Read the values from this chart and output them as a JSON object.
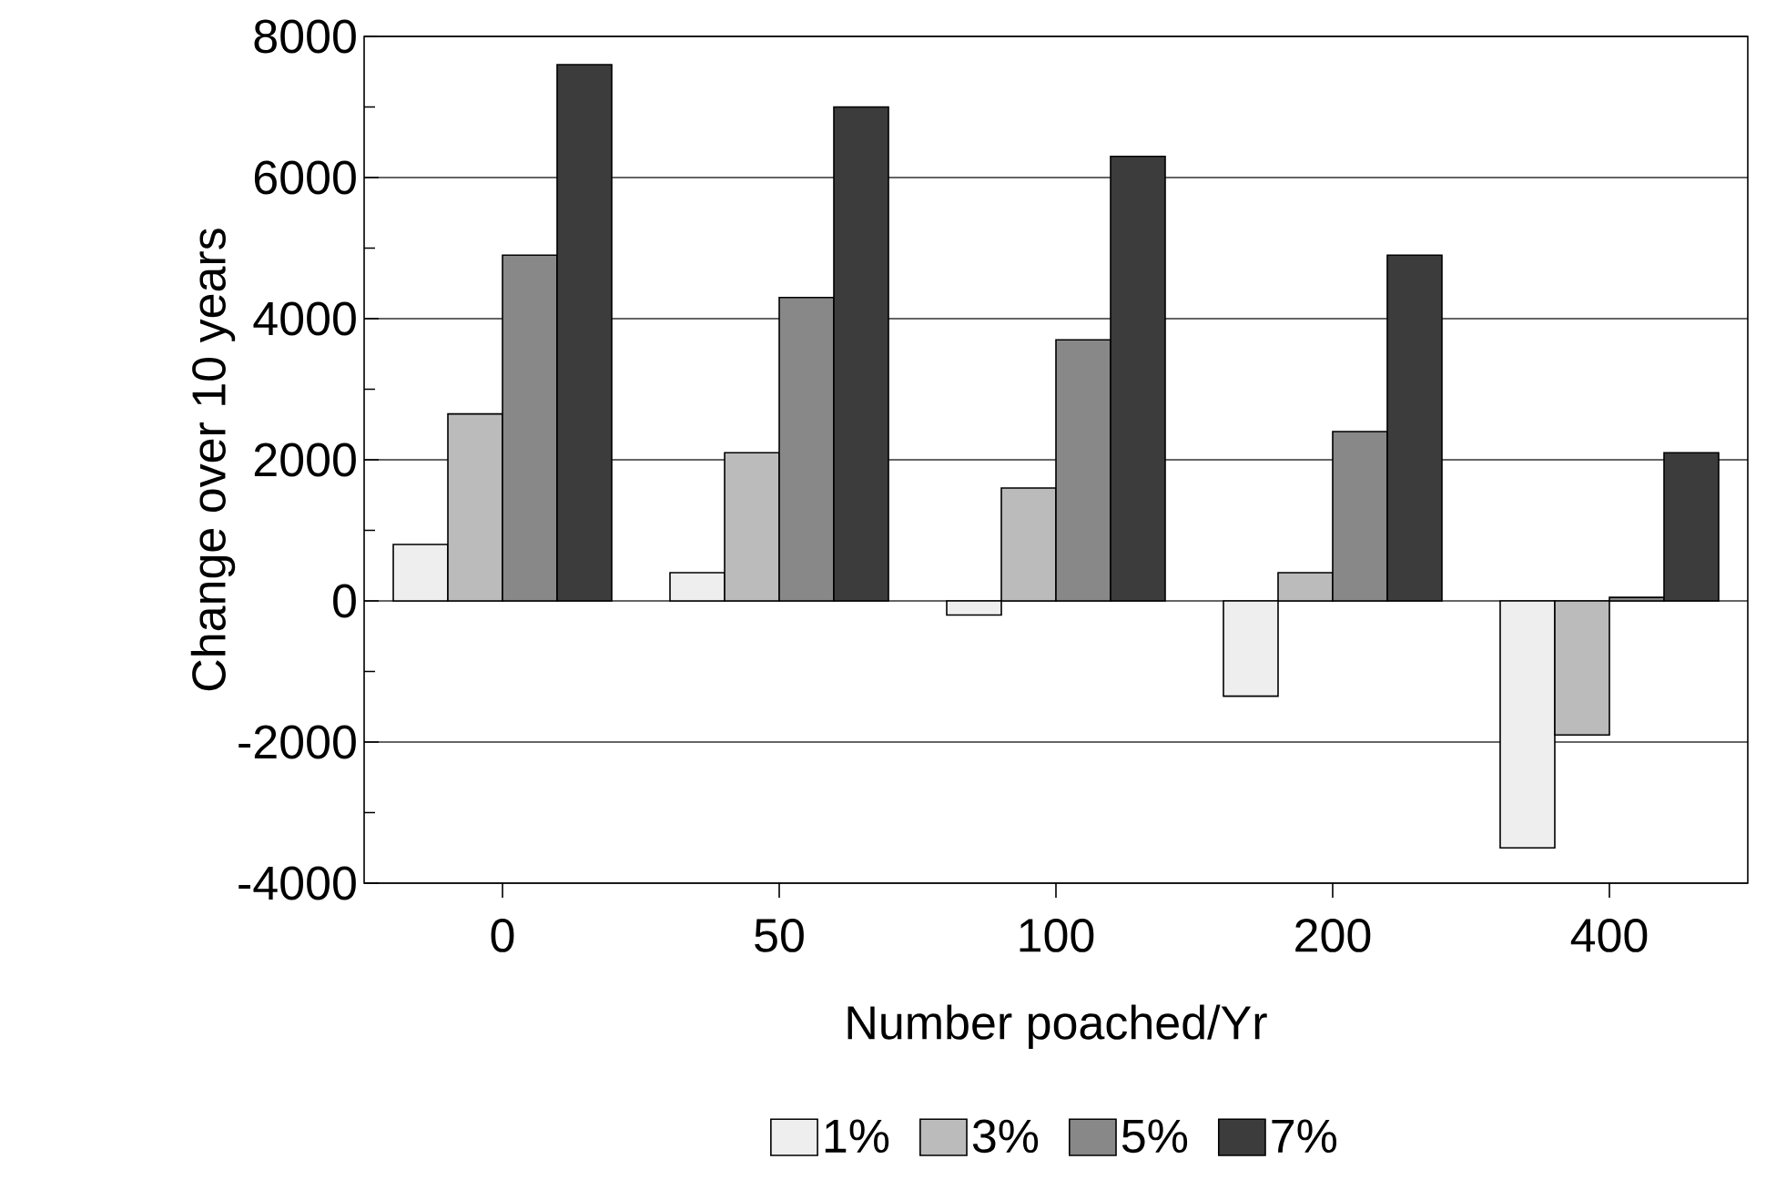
{
  "chart_data": {
    "type": "bar",
    "xlabel": "Number poached/Yr",
    "ylabel": "Change over 10 years",
    "categories": [
      "0",
      "50",
      "100",
      "200",
      "400"
    ],
    "series": [
      {
        "name": "1%",
        "color": "#eeeeee",
        "values": [
          800,
          400,
          -200,
          -1350,
          -3500
        ]
      },
      {
        "name": "3%",
        "color": "#bbbbbb",
        "values": [
          2650,
          2100,
          1600,
          400,
          -1900
        ]
      },
      {
        "name": "5%",
        "color": "#888888",
        "values": [
          4900,
          4300,
          3700,
          2400,
          50
        ]
      },
      {
        "name": "7%",
        "color": "#3c3c3c",
        "values": [
          7600,
          7000,
          6300,
          4900,
          2100
        ]
      }
    ],
    "ylim": [
      -4000,
      8000
    ],
    "yticks": [
      -4000,
      -2000,
      0,
      2000,
      4000,
      6000,
      8000
    ],
    "grid": "y",
    "legend": "bottom"
  }
}
